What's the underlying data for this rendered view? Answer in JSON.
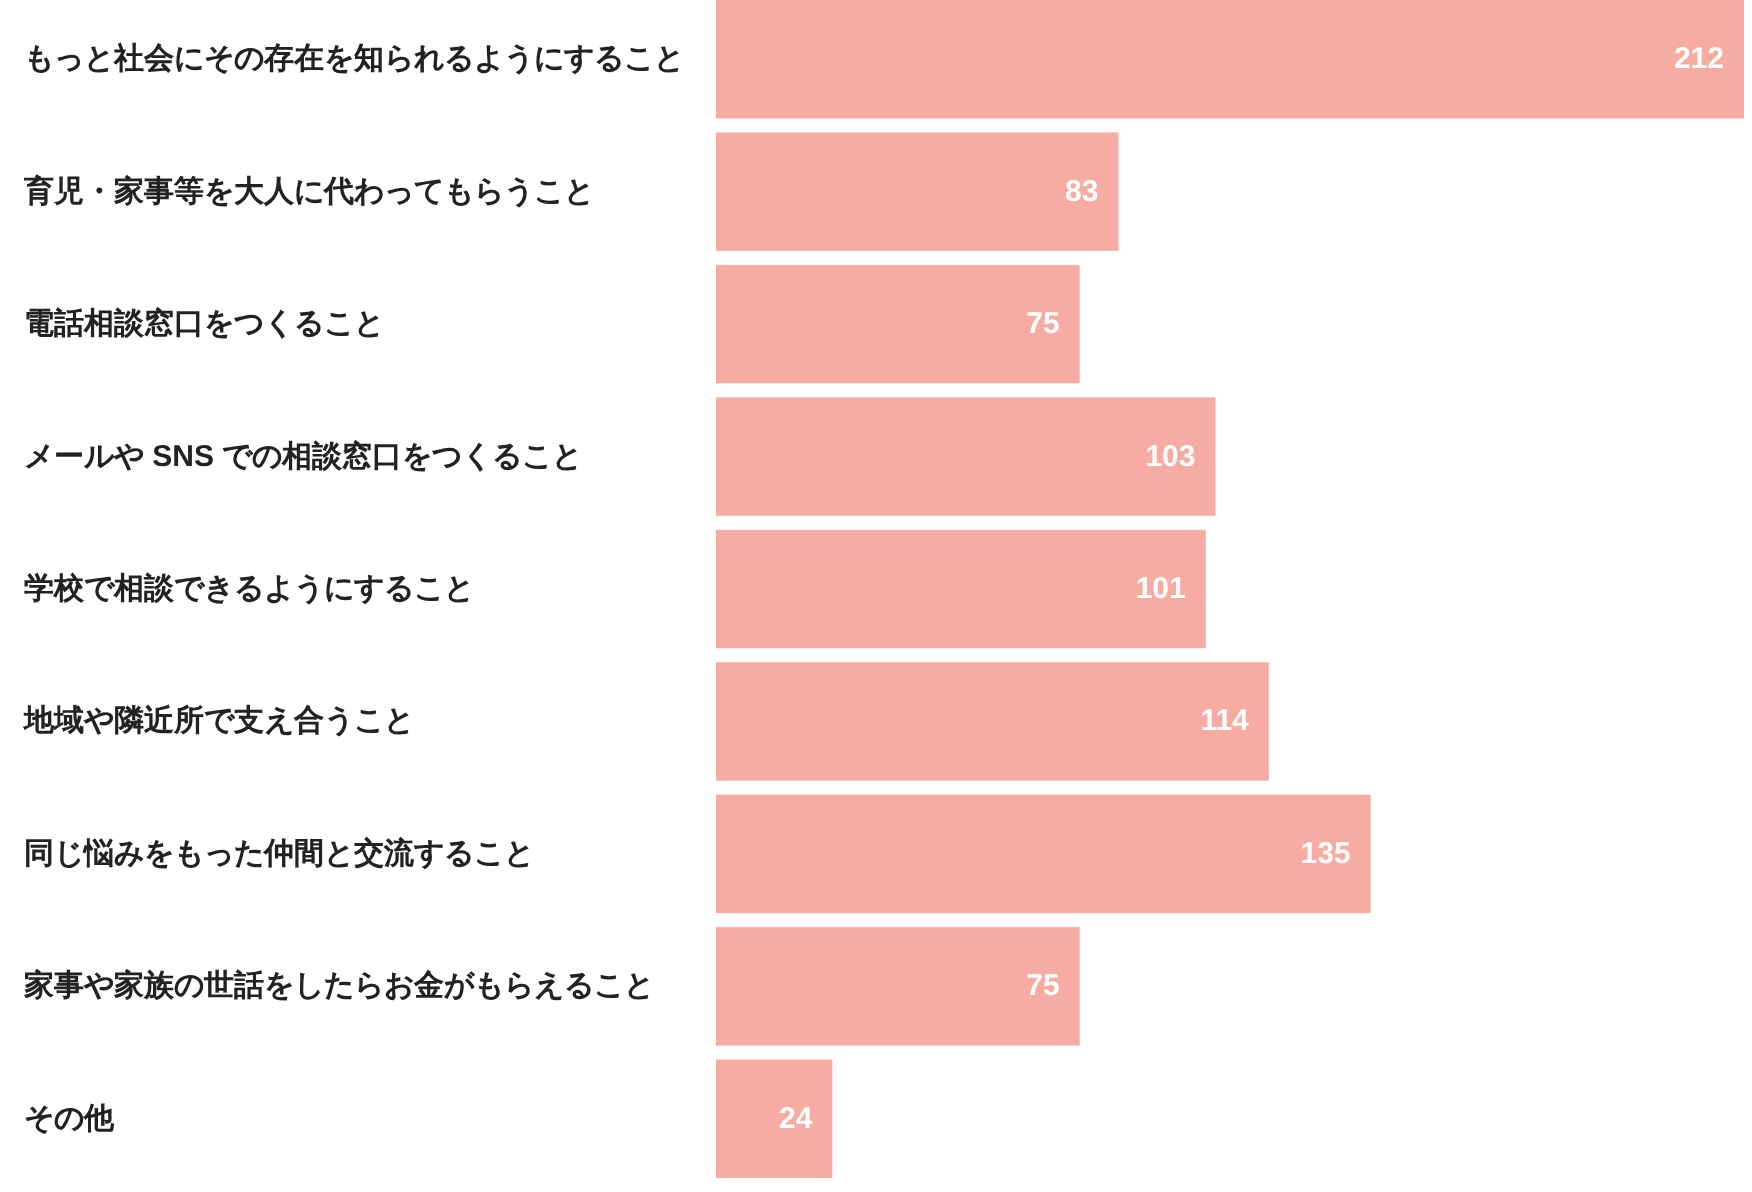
{
  "chart_data": {
    "type": "bar",
    "orientation": "horizontal",
    "categories": [
      "もっと社会にその存在を知られるようにすること",
      "育児・家事等を大人に代わってもらうこと",
      "電話相談窓口をつくること",
      "メールや SNS での相談窓口をつくること",
      "学校で相談できるようにすること",
      "地域や隣近所で支え合うこと",
      "同じ悩みをもった仲間と交流すること",
      "家事や家族の世話をしたらお金がもらえること",
      "その他"
    ],
    "values": [
      212,
      83,
      75,
      103,
      101,
      114,
      135,
      75,
      24
    ],
    "color": "#f6aba3",
    "data_labels": true
  }
}
